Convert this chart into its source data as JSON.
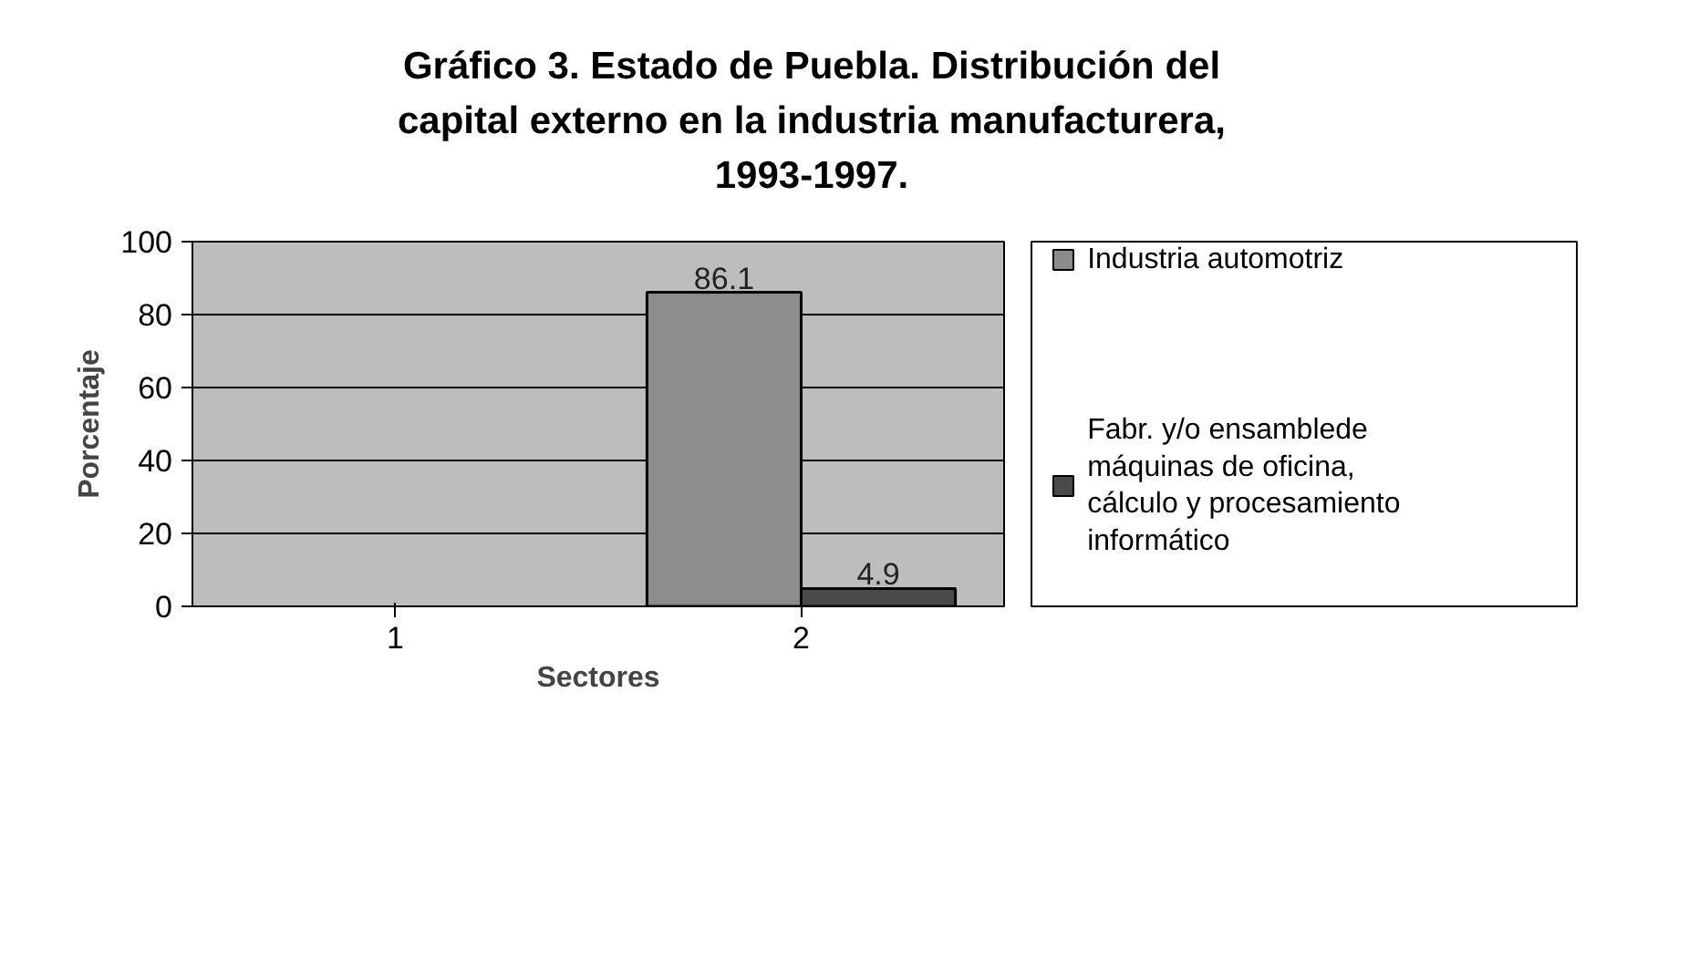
{
  "chart_data": {
    "type": "bar",
    "title": "Gráfico 3. Estado de Puebla. Distribución del capital externo en la industria manufacturera, 1993-1997.",
    "xlabel": "Sectores",
    "ylabel": "Porcentaje",
    "categories": [
      "1",
      "2"
    ],
    "series": [
      {
        "name": "Industria automotriz",
        "color": "#8c8c8c",
        "values": [
          null,
          86.1
        ]
      },
      {
        "name": "Fabr. y/o ensamblede máquinas de oficina, cálculo y procesamiento informático",
        "color": "#4a4a4a",
        "values": [
          null,
          4.9
        ]
      }
    ],
    "ylim": [
      0,
      100
    ],
    "yticks": [
      0,
      20,
      40,
      60,
      80,
      100
    ],
    "grid": "y",
    "legend": "right",
    "data_labels": true
  }
}
